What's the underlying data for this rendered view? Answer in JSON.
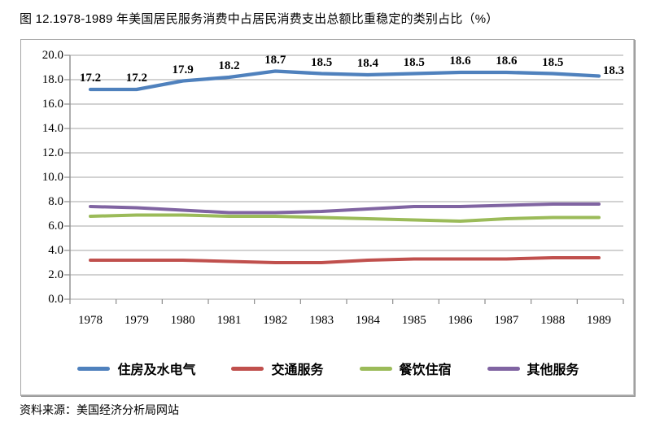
{
  "page": {
    "title": "图 12.1978-1989 年美国居民服务消费中占居民消费支出总额比重稳定的类别占比（%）",
    "source": "资料来源：美国经济分析局网站"
  },
  "chart_data": {
    "type": "line",
    "title": "图 12.1978-1989 年美国居民服务消费中占居民消费支出总额比重稳定的类别占比（%）",
    "x": [
      "1978",
      "1979",
      "1980",
      "1981",
      "1982",
      "1983",
      "1984",
      "1985",
      "1986",
      "1987",
      "1988",
      "1989"
    ],
    "series": [
      {
        "key": "housing-utilities",
        "name": "住房及水电气",
        "color": "#4F81BD",
        "values": [
          17.2,
          17.2,
          17.9,
          18.2,
          18.7,
          18.5,
          18.4,
          18.5,
          18.6,
          18.6,
          18.5,
          18.3
        ],
        "data_labels": [
          "17.2",
          "17.2",
          "17.9",
          "18.2",
          "18.7",
          "18.5",
          "18.4",
          "18.5",
          "18.6",
          "18.6",
          "18.5",
          "18.3"
        ]
      },
      {
        "key": "transport-services",
        "name": "交通服务",
        "color": "#C0504D",
        "values": [
          3.2,
          3.2,
          3.2,
          3.1,
          3.0,
          3.0,
          3.2,
          3.3,
          3.3,
          3.3,
          3.4,
          3.4
        ],
        "data_labels": null
      },
      {
        "key": "dining-lodging",
        "name": "餐饮住宿",
        "color": "#9BBB59",
        "values": [
          6.8,
          6.9,
          6.9,
          6.8,
          6.8,
          6.7,
          6.6,
          6.5,
          6.4,
          6.6,
          6.7,
          6.7
        ],
        "data_labels": null
      },
      {
        "key": "other-services",
        "name": "其他服务",
        "color": "#8064A2",
        "values": [
          7.6,
          7.5,
          7.3,
          7.1,
          7.1,
          7.2,
          7.4,
          7.6,
          7.6,
          7.7,
          7.8,
          7.8
        ],
        "data_labels": null
      }
    ],
    "ylim": [
      0,
      20
    ],
    "ytick_step": 2,
    "ytick_labels": [
      "0.0",
      "2.0",
      "4.0",
      "6.0",
      "8.0",
      "10.0",
      "12.0",
      "14.0",
      "16.0",
      "18.0",
      "20.0"
    ],
    "grid": true,
    "legend_position": "bottom",
    "gridline_color": "#A6A6A6",
    "axis_color": "#8C8C8C",
    "xlabel": "",
    "ylabel": ""
  }
}
